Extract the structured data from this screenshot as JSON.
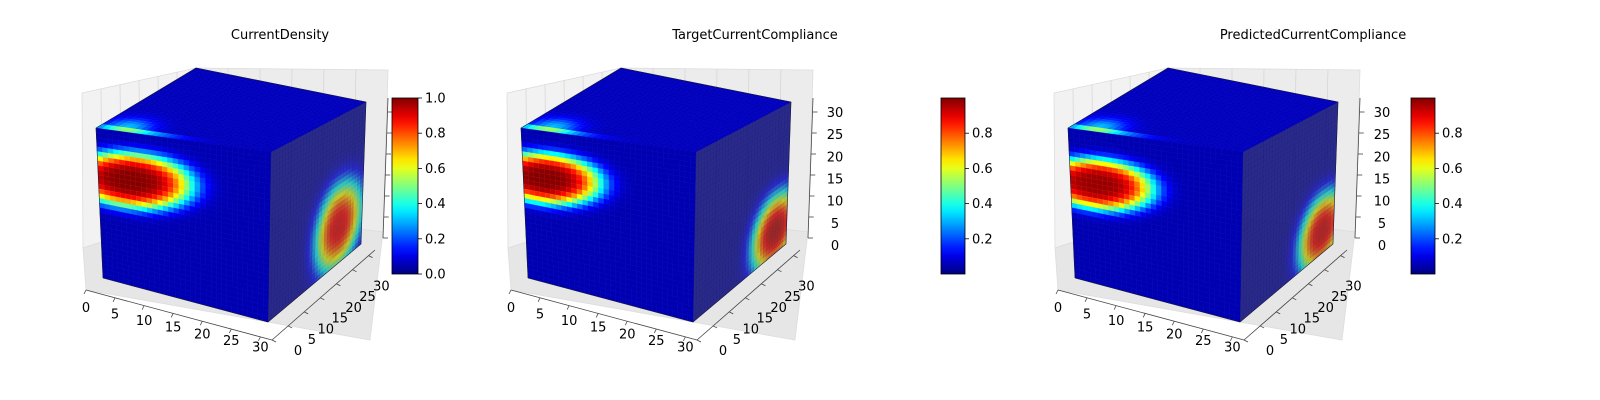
{
  "chart_data": [
    {
      "type": "voxel-3d",
      "title": "CurrentDensity",
      "grid": true,
      "x": {
        "range": [
          0,
          32
        ],
        "ticks": [
          "0",
          "5",
          "10",
          "15",
          "20",
          "25",
          "30"
        ]
      },
      "y": {
        "range": [
          0,
          32
        ],
        "ticks": [
          "0",
          "5",
          "10",
          "15",
          "20",
          "25",
          "30"
        ]
      },
      "z": {
        "range": [
          0,
          32
        ],
        "ticks": []
      },
      "colorbar": {
        "range": [
          0,
          1
        ],
        "ticks": [
          "0.0",
          "0.2",
          "0.4",
          "0.6",
          "0.8",
          "1.0"
        ],
        "colormap": "jet"
      },
      "hotspot": {
        "front_center": [
          6,
          22
        ],
        "front_radius": [
          12,
          7
        ],
        "front_peak": 1.0,
        "side_center": [
          24,
          8
        ],
        "side_radius": [
          8,
          9
        ],
        "side_peak": 0.9
      }
    },
    {
      "type": "voxel-3d",
      "title": "TargetCurrentCompliance",
      "grid": true,
      "x": {
        "range": [
          0,
          32
        ],
        "ticks": [
          "0",
          "5",
          "10",
          "15",
          "20",
          "25",
          "30"
        ]
      },
      "y": {
        "range": [
          0,
          32
        ],
        "ticks": [
          "0",
          "5",
          "10",
          "15",
          "20",
          "25",
          "30"
        ]
      },
      "z": {
        "range": [
          0,
          32
        ],
        "ticks": [
          "0",
          "5",
          "10",
          "15",
          "20",
          "25",
          "30"
        ]
      },
      "colorbar": {
        "range": [
          0,
          1
        ],
        "ticks": [
          "0.2",
          "0.4",
          "0.6",
          "0.8"
        ],
        "colormap": "jet"
      },
      "hotspot": {
        "front_center": [
          4,
          22
        ],
        "front_radius": [
          11,
          6.5
        ],
        "front_peak": 1.0,
        "side_center": [
          28,
          5
        ],
        "side_radius": [
          8,
          8
        ],
        "side_peak": 0.95
      }
    },
    {
      "type": "voxel-3d",
      "title": "PredictedCurrentCompliance",
      "grid": true,
      "x": {
        "range": [
          0,
          32
        ],
        "ticks": [
          "0",
          "5",
          "10",
          "15",
          "20",
          "25",
          "30"
        ]
      },
      "y": {
        "range": [
          0,
          32
        ],
        "ticks": [
          "0",
          "5",
          "10",
          "15",
          "20",
          "25",
          "30"
        ]
      },
      "z": {
        "range": [
          0,
          32
        ],
        "ticks": [
          "0",
          "5",
          "10",
          "15",
          "20",
          "25",
          "30"
        ]
      },
      "colorbar": {
        "range": [
          0,
          1
        ],
        "ticks": [
          "0.2",
          "0.4",
          "0.6",
          "0.8"
        ],
        "colormap": "jet"
      },
      "hotspot": {
        "front_center": [
          5,
          21
        ],
        "front_radius": [
          11,
          6.5
        ],
        "front_peak": 0.98,
        "side_center": [
          28,
          5
        ],
        "side_radius": [
          8,
          8
        ],
        "side_peak": 0.92
      }
    }
  ]
}
